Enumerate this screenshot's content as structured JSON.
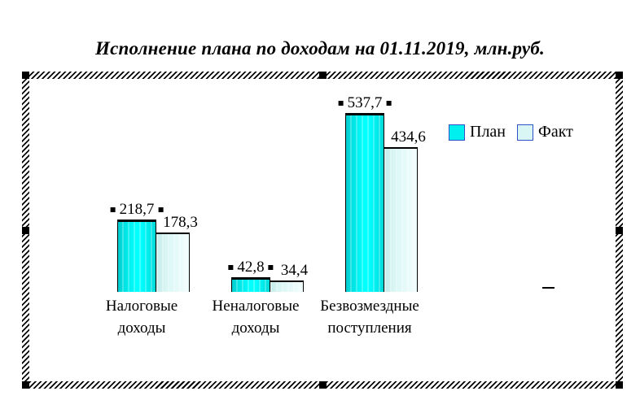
{
  "title": "Исполнение плана по доходам на 01.11.2019, млн.руб.",
  "chart_data": {
    "type": "bar",
    "title": "Исполнение плана по доходам на 01.11.2019, млн.руб.",
    "units": "млн.руб.",
    "categories": [
      "Налоговые\nдоходы",
      "Неналоговые\nдоходы",
      "Безвозмездные\nпоступления"
    ],
    "series": [
      {
        "name": "План",
        "values": [
          218.7,
          42.8,
          537.7
        ],
        "labels": [
          "218,7",
          "42,8",
          "537,7"
        ],
        "color": "#00efef",
        "labels_selected": true
      },
      {
        "name": "Факт",
        "values": [
          178.3,
          34.4,
          434.6
        ],
        "labels": [
          "178,3",
          "34,4",
          "434,6"
        ],
        "color": "#d9f6f5",
        "labels_selected": false
      }
    ],
    "ylim": [
      0,
      560
    ],
    "grid": false,
    "axes_visible": false,
    "legend_position": "top-right",
    "decimal_separator": ","
  },
  "colors": {
    "plan_fill": "#00efef",
    "fact_fill": "#d9f6f5",
    "bar_border": "#000000",
    "legend_swatch_border": "#3050c8",
    "spellcheck_underline": "#00a000",
    "text": "#000000"
  }
}
